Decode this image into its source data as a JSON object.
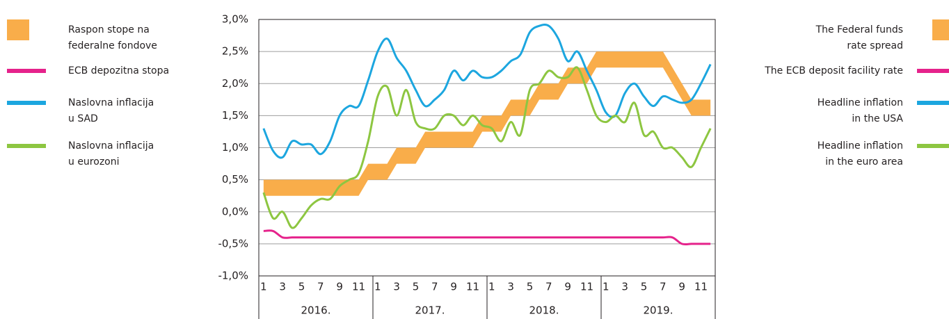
{
  "chart_data": {
    "type": "line",
    "categories": [
      1,
      null,
      3,
      null,
      5,
      null,
      7,
      null,
      9,
      null,
      11,
      null,
      1,
      null,
      3,
      null,
      5,
      null,
      7,
      null,
      9,
      null,
      11,
      null,
      1,
      null,
      3,
      null,
      5,
      null,
      7,
      null,
      9,
      null,
      11,
      null,
      1,
      null,
      3,
      null,
      5,
      null,
      7,
      null,
      9,
      null,
      11,
      null
    ],
    "years": [
      "2016.",
      "2017.",
      "2018.",
      "2019."
    ],
    "ylim": [
      -1,
      3
    ],
    "yticks": [
      {
        "value": -1,
        "label": "-1,0%"
      },
      {
        "value": -0.5,
        "label": "-0,5%"
      },
      {
        "value": 0,
        "label": "0,0%"
      },
      {
        "value": 0.5,
        "label": "0,5%"
      },
      {
        "value": 1,
        "label": "1,0%"
      },
      {
        "value": 1.5,
        "label": "1,5%"
      },
      {
        "value": 2,
        "label": "2,0%"
      },
      {
        "value": 2.5,
        "label": "2,5%"
      },
      {
        "value": 3,
        "label": "3,0%"
      }
    ],
    "grid": true,
    "series": [
      {
        "name": [
          "Raspon stope na",
          "federalne fondove"
        ],
        "name_en": [
          "The Federal funds",
          "rate spread"
        ],
        "color": "#f9ad4a",
        "kind": "band",
        "low": [
          0.25,
          0.25,
          0.25,
          0.25,
          0.25,
          0.25,
          0.25,
          0.25,
          0.25,
          0.25,
          0.25,
          0.5,
          0.5,
          0.5,
          0.75,
          0.75,
          0.75,
          1,
          1,
          1,
          1,
          1,
          1,
          1.25,
          1.25,
          1.25,
          1.5,
          1.5,
          1.5,
          1.75,
          1.75,
          1.75,
          2,
          2,
          2,
          2.25,
          2.25,
          2.25,
          2.25,
          2.25,
          2.25,
          2.25,
          2.25,
          2,
          1.75,
          1.5,
          1.5,
          1.5
        ],
        "high": [
          0.5,
          0.5,
          0.5,
          0.5,
          0.5,
          0.5,
          0.5,
          0.5,
          0.5,
          0.5,
          0.5,
          0.75,
          0.75,
          0.75,
          1,
          1,
          1,
          1.25,
          1.25,
          1.25,
          1.25,
          1.25,
          1.25,
          1.5,
          1.5,
          1.5,
          1.75,
          1.75,
          1.75,
          2,
          2,
          2,
          2.25,
          2.25,
          2.25,
          2.5,
          2.5,
          2.5,
          2.5,
          2.5,
          2.5,
          2.5,
          2.5,
          2.25,
          2,
          1.75,
          1.75,
          1.75
        ]
      },
      {
        "name": [
          "ECB depozitna stopa"
        ],
        "name_en": [
          "The ECB deposit facility rate"
        ],
        "color": "#e5228b",
        "values": [
          -0.3,
          -0.3,
          -0.4,
          -0.4,
          -0.4,
          -0.4,
          -0.4,
          -0.4,
          -0.4,
          -0.4,
          -0.4,
          -0.4,
          -0.4,
          -0.4,
          -0.4,
          -0.4,
          -0.4,
          -0.4,
          -0.4,
          -0.4,
          -0.4,
          -0.4,
          -0.4,
          -0.4,
          -0.4,
          -0.4,
          -0.4,
          -0.4,
          -0.4,
          -0.4,
          -0.4,
          -0.4,
          -0.4,
          -0.4,
          -0.4,
          -0.4,
          -0.4,
          -0.4,
          -0.4,
          -0.4,
          -0.4,
          -0.4,
          -0.4,
          -0.4,
          -0.5,
          -0.5,
          -0.5,
          -0.5
        ]
      },
      {
        "name": [
          "Naslovna inflacija",
          "u SAD"
        ],
        "name_en": [
          "Headline inflation",
          "in the USA"
        ],
        "color": "#1ca6df",
        "values": [
          1.3,
          0.95,
          0.85,
          1.1,
          1.05,
          1.05,
          0.9,
          1.1,
          1.5,
          1.65,
          1.65,
          2.05,
          2.5,
          2.7,
          2.4,
          2.2,
          1.9,
          1.65,
          1.75,
          1.9,
          2.2,
          2.05,
          2.2,
          2.1,
          2.1,
          2.2,
          2.35,
          2.45,
          2.8,
          2.9,
          2.9,
          2.7,
          2.35,
          2.5,
          2.2,
          1.9,
          1.55,
          1.5,
          1.85,
          2,
          1.8,
          1.65,
          1.8,
          1.75,
          1.7,
          1.75,
          2,
          2.3
        ]
      },
      {
        "name": [
          "Naslovna inflacija",
          "u eurozoni"
        ],
        "name_en": [
          "Headline inflation",
          "in the euro area"
        ],
        "color": "#8dc641",
        "values": [
          0.3,
          -0.1,
          0,
          -0.25,
          -0.1,
          0.1,
          0.2,
          0.2,
          0.4,
          0.5,
          0.6,
          1.1,
          1.8,
          1.95,
          1.5,
          1.9,
          1.4,
          1.3,
          1.3,
          1.5,
          1.5,
          1.35,
          1.5,
          1.35,
          1.3,
          1.1,
          1.4,
          1.2,
          1.9,
          2,
          2.2,
          2.1,
          2.1,
          2.25,
          1.9,
          1.5,
          1.4,
          1.5,
          1.4,
          1.7,
          1.2,
          1.25,
          1,
          1,
          0.85,
          0.7,
          1,
          1.3
        ]
      }
    ]
  }
}
